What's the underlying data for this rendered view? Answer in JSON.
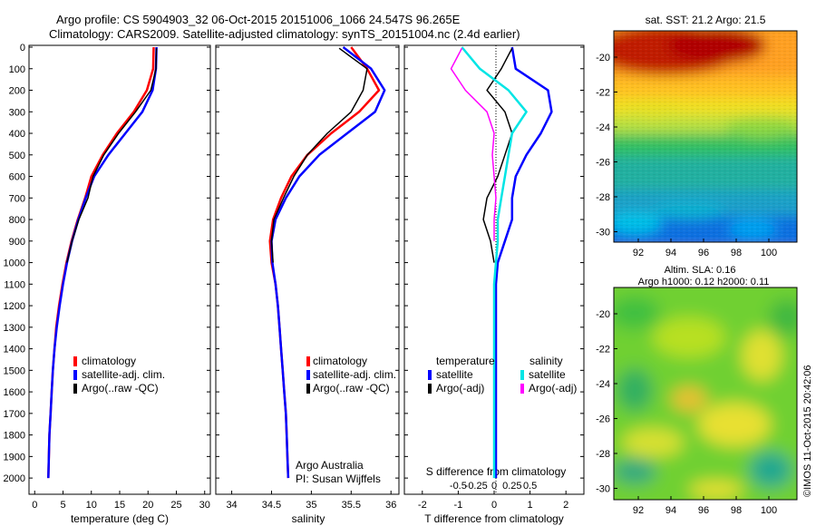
{
  "header": {
    "line1": "Argo profile: CS 5904903_32 06-Oct-2015 20151006_1066 24.547S 96.265E",
    "line2": "Climatology: CARS2009. Satellite-adjusted climatology: synTS_20151004.nc (2.4d earlier)"
  },
  "colors": {
    "climatology": "#ff0000",
    "satellite": "#0000ff",
    "argo": "#000000",
    "salinity_satellite": "#00e5e5",
    "salinity_argo": "#ff00ff"
  },
  "panels": {
    "temperature": {
      "xlabel": "temperature (deg C)",
      "xticks": [
        "0",
        "5",
        "10",
        "15",
        "20",
        "25",
        "30"
      ],
      "legend": [
        "climatology",
        "satellite-adj. clim.",
        "Argo(..raw -QC)"
      ]
    },
    "salinity": {
      "xlabel": "salinity",
      "xticks": [
        "34",
        "34.5",
        "35",
        "35.5",
        "36"
      ],
      "legend": [
        "climatology",
        "satellite-adj. clim.",
        "Argo(..raw -QC)"
      ],
      "credit1": "Argo Australia",
      "credit2": "PI: Susan Wijffels"
    },
    "difference": {
      "xlabel": "T difference from climatology",
      "xlabel_top": "S difference from climatology",
      "xticks": [
        "-2",
        "-1",
        "0",
        "1",
        "2"
      ],
      "xticks_top": [
        "-0.5",
        "-0.25",
        "0",
        "0.25",
        "0.5"
      ],
      "legend_temp_title": "temperature",
      "legend_sal_title": "salinity",
      "legend_temp": [
        "satellite",
        "Argo(-adj)"
      ],
      "legend_sal": [
        "satellite",
        "Argo(-adj)"
      ]
    },
    "depth_ticks": [
      "0",
      "100",
      "200",
      "300",
      "400",
      "500",
      "600",
      "700",
      "800",
      "900",
      "1000",
      "1100",
      "1200",
      "1300",
      "1400",
      "1500",
      "1600",
      "1700",
      "1800",
      "1900",
      "2000"
    ]
  },
  "maps": {
    "sst_title": "sat. SST: 21.2 Argo: 21.5",
    "sla_title1": "Altim. SLA: 0.16",
    "sla_title2": "Argo h1000: 0.12 h2000: 0.11",
    "xticks": [
      "92",
      "94",
      "96",
      "98",
      "100"
    ],
    "yticks": [
      "-20",
      "-22",
      "-24",
      "-26",
      "-28",
      "-30"
    ]
  },
  "footer": {
    "stamp": "©IMOS 11-Oct-2015 20:42:06"
  },
  "chart_data": [
    {
      "type": "line",
      "y_axis": "depth (reversed)",
      "ylim": [
        2050,
        0
      ],
      "xlim": [
        -1,
        31
      ],
      "series": [
        {
          "name": "climatology",
          "x": [
            21.0,
            20.9,
            19.8,
            17.5,
            14.5,
            12.0,
            10.0,
            8.9,
            7.6,
            6.5,
            5.6,
            4.9,
            4.3,
            3.8,
            3.5,
            3.2,
            3.0,
            2.8,
            2.6,
            2.5,
            2.4
          ],
          "y": [
            0,
            100,
            200,
            300,
            400,
            500,
            600,
            700,
            800,
            900,
            1000,
            1100,
            1200,
            1300,
            1400,
            1500,
            1600,
            1700,
            1800,
            1900,
            2000
          ]
        },
        {
          "name": "satellite-adj. clim.",
          "x": [
            21.5,
            21.4,
            20.8,
            19.0,
            16.0,
            13.0,
            10.5,
            9.0,
            7.7,
            6.6,
            5.7,
            5.0,
            4.4,
            3.9,
            3.5,
            3.2,
            3.0,
            2.8,
            2.6,
            2.5,
            2.4
          ],
          "y": [
            0,
            100,
            200,
            300,
            400,
            500,
            600,
            700,
            800,
            900,
            1000,
            1100,
            1200,
            1300,
            1400,
            1500,
            1600,
            1700,
            1800,
            1900,
            2000
          ]
        },
        {
          "name": "Argo(..raw -QC)",
          "x": [
            21.5,
            21.4,
            20.5,
            17.8,
            14.8,
            12.2,
            10.3,
            9.4,
            7.8,
            6.6,
            5.7
          ],
          "y": [
            5,
            100,
            200,
            300,
            400,
            500,
            600,
            700,
            800,
            900,
            1000
          ]
        }
      ]
    },
    {
      "type": "line",
      "y_axis": "depth (reversed)",
      "ylim": [
        2050,
        0
      ],
      "xlim": [
        33.8,
        36.1
      ],
      "series": [
        {
          "name": "climatology",
          "x": [
            35.5,
            35.7,
            35.85,
            35.6,
            35.25,
            34.95,
            34.75,
            34.62,
            34.52,
            34.48,
            34.5,
            34.55,
            34.58,
            34.6,
            34.62,
            34.64,
            34.66,
            34.68,
            34.69,
            34.7,
            34.71
          ],
          "y": [
            0,
            100,
            200,
            300,
            400,
            500,
            600,
            700,
            800,
            900,
            1000,
            1100,
            1200,
            1300,
            1400,
            1500,
            1600,
            1700,
            1800,
            1900,
            2000
          ]
        },
        {
          "name": "satellite-adj. clim.",
          "x": [
            35.4,
            35.75,
            35.92,
            35.8,
            35.45,
            35.1,
            34.85,
            34.68,
            34.55,
            34.5,
            34.51,
            34.55,
            34.58,
            34.6,
            34.62,
            34.64,
            34.66,
            34.68,
            34.69,
            34.7,
            34.71
          ],
          "y": [
            0,
            100,
            200,
            300,
            400,
            500,
            600,
            700,
            800,
            900,
            1000,
            1100,
            1200,
            1300,
            1400,
            1500,
            1600,
            1700,
            1800,
            1900,
            2000
          ]
        },
        {
          "name": "Argo(..raw -QC)",
          "x": [
            35.35,
            35.7,
            35.65,
            35.5,
            35.2,
            34.95,
            34.78,
            34.65,
            34.53,
            34.5,
            34.52
          ],
          "y": [
            5,
            100,
            200,
            300,
            400,
            500,
            600,
            700,
            800,
            900,
            1000
          ]
        }
      ]
    },
    {
      "type": "line",
      "y_axis": "depth (reversed)",
      "ylim": [
        2050,
        0
      ],
      "xlim": [
        -2.5,
        2.5
      ],
      "series": [
        {
          "name": "temperature satellite",
          "x": [
            0.5,
            0.6,
            1.5,
            1.6,
            1.3,
            0.9,
            0.6,
            0.5,
            0.5,
            0.3,
            0.1,
            0.05,
            0.05,
            0.05,
            0.05,
            0.05,
            0.05,
            0.05,
            0.05,
            0.05,
            0.05
          ],
          "y": [
            0,
            100,
            200,
            300,
            400,
            500,
            600,
            700,
            800,
            900,
            1000,
            1100,
            1200,
            1300,
            1400,
            1500,
            1600,
            1700,
            1800,
            1900,
            2000
          ]
        },
        {
          "name": "temperature Argo(-adj)",
          "x": [
            0.5,
            0.2,
            -0.2,
            0.3,
            0.5,
            0.3,
            0.1,
            -0.2,
            -0.3,
            -0.1,
            0.0
          ],
          "y": [
            5,
            100,
            200,
            300,
            400,
            500,
            600,
            700,
            800,
            900,
            1000
          ]
        },
        {
          "name": "salinity satellite",
          "x": [
            -0.9,
            -0.4,
            0.4,
            0.9,
            0.5,
            0.4,
            0.3,
            0.2,
            0.1,
            0.1,
            0.05,
            0.0,
            0.0,
            0.0,
            0.0,
            0.0,
            0.0,
            0.0,
            0.0,
            0.0,
            0.0
          ],
          "y": [
            0,
            100,
            200,
            300,
            400,
            500,
            600,
            700,
            800,
            900,
            1000,
            1100,
            1200,
            1300,
            1400,
            1500,
            1600,
            1700,
            1800,
            1900,
            2000
          ]
        },
        {
          "name": "salinity Argo(-adj)",
          "x": [
            -0.9,
            -1.2,
            -0.8,
            -0.2,
            0.0,
            -0.05,
            0.0,
            0.05,
            0.0,
            0.0
          ],
          "y": [
            5,
            100,
            200,
            300,
            400,
            500,
            600,
            700,
            800,
            900
          ]
        }
      ]
    }
  ]
}
